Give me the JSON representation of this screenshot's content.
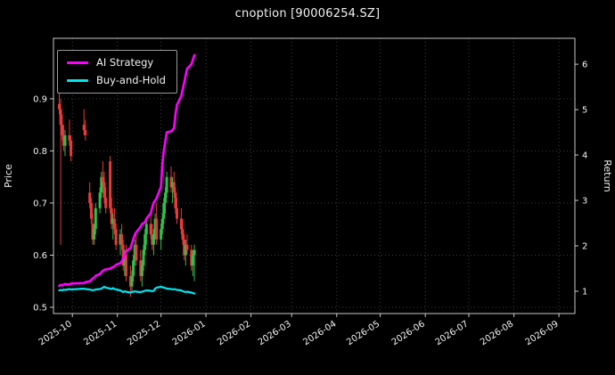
{
  "title": "cnoption [90006254.SZ]",
  "chart_data": {
    "type": "candlestick+line",
    "title": "cnoption [90006254.SZ]",
    "x_domain": [
      "2025-09-18",
      "2026-09-12"
    ],
    "x_ticks": [
      "2025-10",
      "2025-11",
      "2025-12",
      "2026-01",
      "2026-02",
      "2026-03",
      "2026-04",
      "2026-05",
      "2026-06",
      "2026-07",
      "2026-08",
      "2026-09"
    ],
    "left_axis": {
      "label": "Price",
      "ticks": [
        0.5,
        0.6,
        0.7,
        0.8,
        0.9
      ],
      "range": [
        0.488,
        1.016
      ]
    },
    "right_axis": {
      "label": "Return",
      "ticks": [
        1,
        2,
        3,
        4,
        5,
        6
      ],
      "range": [
        0.51,
        6.57
      ]
    },
    "grid": "dotted",
    "legend_position": "upper-left",
    "legend": [
      {
        "label": "AI Strategy",
        "color": "#ff00ff"
      },
      {
        "label": "Buy-and-Hold",
        "color": "#00e5ee"
      }
    ],
    "colors": {
      "background": "#000000",
      "text": "#f2f2f2",
      "grid": "#4d4d4d",
      "frame": "#c8c8c8",
      "up": "#2fbf4a",
      "down": "#e83a3a",
      "ai_strategy": "#ff00ff",
      "buy_and_hold": "#00e5ee"
    },
    "candles": {
      "dates": [
        "2025-09-22",
        "2025-09-23",
        "2025-09-24",
        "2025-09-25",
        "2025-09-26",
        "2025-09-29",
        "2025-09-30",
        "2025-10-09",
        "2025-10-10",
        "2025-10-13",
        "2025-10-14",
        "2025-10-15",
        "2025-10-16",
        "2025-10-17",
        "2025-10-20",
        "2025-10-21",
        "2025-10-22",
        "2025-10-23",
        "2025-10-24",
        "2025-10-27",
        "2025-10-28",
        "2025-10-29",
        "2025-10-30",
        "2025-10-31",
        "2025-11-03",
        "2025-11-04",
        "2025-11-05",
        "2025-11-06",
        "2025-11-07",
        "2025-11-10",
        "2025-11-11",
        "2025-11-12",
        "2025-11-13",
        "2025-11-14",
        "2025-11-17",
        "2025-11-18",
        "2025-11-19",
        "2025-11-20",
        "2025-11-21",
        "2025-11-24",
        "2025-11-25",
        "2025-11-26",
        "2025-11-27",
        "2025-11-28",
        "2025-12-01",
        "2025-12-02",
        "2025-12-03",
        "2025-12-04",
        "2025-12-05",
        "2025-12-08",
        "2025-12-09",
        "2025-12-10",
        "2025-12-11",
        "2025-12-12",
        "2025-12-15",
        "2025-12-16",
        "2025-12-17",
        "2025-12-18",
        "2025-12-19",
        "2025-12-22",
        "2025-12-23",
        "2025-12-24"
      ],
      "open": [
        0.89,
        0.88,
        0.85,
        0.83,
        0.81,
        0.83,
        0.82,
        0.85,
        0.84,
        0.72,
        0.7,
        0.66,
        0.63,
        0.65,
        0.69,
        0.72,
        0.75,
        0.74,
        0.71,
        0.78,
        0.69,
        0.66,
        0.67,
        0.65,
        0.62,
        0.64,
        0.62,
        0.58,
        0.6,
        0.56,
        0.54,
        0.56,
        0.59,
        0.62,
        0.59,
        0.56,
        0.58,
        0.61,
        0.64,
        0.66,
        0.64,
        0.62,
        0.64,
        0.67,
        0.63,
        0.65,
        0.67,
        0.7,
        0.72,
        0.75,
        0.73,
        0.74,
        0.72,
        0.69,
        0.67,
        0.65,
        0.63,
        0.6,
        0.62,
        0.61,
        0.58,
        0.6
      ],
      "high": [
        0.93,
        0.9,
        0.87,
        0.85,
        0.84,
        0.86,
        0.83,
        0.88,
        0.86,
        0.74,
        0.71,
        0.68,
        0.66,
        0.7,
        0.73,
        0.76,
        0.78,
        0.76,
        0.73,
        0.79,
        0.71,
        0.68,
        0.69,
        0.66,
        0.65,
        0.66,
        0.63,
        0.61,
        0.62,
        0.58,
        0.57,
        0.6,
        0.63,
        0.64,
        0.61,
        0.59,
        0.62,
        0.65,
        0.67,
        0.68,
        0.66,
        0.65,
        0.68,
        0.7,
        0.66,
        0.68,
        0.71,
        0.73,
        0.76,
        0.77,
        0.75,
        0.76,
        0.73,
        0.71,
        0.69,
        0.67,
        0.64,
        0.63,
        0.64,
        0.62,
        0.61,
        0.62
      ],
      "low": [
        0.87,
        0.62,
        0.82,
        0.8,
        0.79,
        0.81,
        0.78,
        0.83,
        0.82,
        0.69,
        0.66,
        0.62,
        0.62,
        0.64,
        0.68,
        0.71,
        0.73,
        0.7,
        0.68,
        0.68,
        0.65,
        0.63,
        0.64,
        0.61,
        0.6,
        0.61,
        0.57,
        0.56,
        0.55,
        0.52,
        0.53,
        0.55,
        0.58,
        0.58,
        0.55,
        0.54,
        0.57,
        0.6,
        0.62,
        0.63,
        0.61,
        0.6,
        0.63,
        0.62,
        0.61,
        0.64,
        0.66,
        0.68,
        0.71,
        0.72,
        0.7,
        0.71,
        0.68,
        0.66,
        0.64,
        0.62,
        0.59,
        0.58,
        0.6,
        0.57,
        0.56,
        0.55
      ],
      "close": [
        0.88,
        0.85,
        0.83,
        0.81,
        0.83,
        0.82,
        0.79,
        0.84,
        0.83,
        0.7,
        0.67,
        0.63,
        0.65,
        0.69,
        0.72,
        0.75,
        0.74,
        0.71,
        0.69,
        0.69,
        0.66,
        0.67,
        0.65,
        0.62,
        0.64,
        0.62,
        0.58,
        0.6,
        0.56,
        0.54,
        0.56,
        0.59,
        0.62,
        0.59,
        0.56,
        0.58,
        0.61,
        0.64,
        0.66,
        0.64,
        0.62,
        0.64,
        0.67,
        0.63,
        0.65,
        0.67,
        0.7,
        0.72,
        0.75,
        0.73,
        0.74,
        0.72,
        0.69,
        0.67,
        0.65,
        0.63,
        0.6,
        0.62,
        0.61,
        0.58,
        0.6,
        0.61
      ]
    },
    "series": [
      {
        "id": "buy-and-hold-line",
        "name": "Buy-and-Hold",
        "axis": "right",
        "color": "#00e5ee",
        "width": 2.2,
        "values": [
          1.02,
          1.03,
          1.02,
          1.04,
          1.03,
          1.05,
          1.04,
          1.06,
          1.05,
          1.04,
          1.03,
          1.02,
          1.03,
          1.04,
          1.05,
          1.06,
          1.08,
          1.1,
          1.08,
          1.06,
          1.05,
          1.07,
          1.05,
          1.04,
          1.02,
          1.0,
          0.98,
          1.0,
          0.99,
          0.97,
          0.98,
          0.99,
          1.0,
          0.99,
          0.98,
          0.99,
          1.0,
          1.01,
          1.02,
          1.01,
          1.0,
          1.01,
          1.06,
          1.08,
          1.1,
          1.09,
          1.08,
          1.07,
          1.06,
          1.05,
          1.04,
          1.05,
          1.04,
          1.03,
          1.02,
          1.0,
          0.99,
          0.98,
          0.99,
          0.97,
          0.96,
          0.95
        ]
      },
      {
        "id": "ai-strategy-line",
        "name": "AI Strategy",
        "axis": "right",
        "color": "#ff00ff",
        "width": 2.6,
        "values": [
          1.12,
          1.14,
          1.13,
          1.15,
          1.16,
          1.15,
          1.17,
          1.18,
          1.2,
          1.22,
          1.25,
          1.28,
          1.3,
          1.34,
          1.38,
          1.42,
          1.45,
          1.47,
          1.48,
          1.5,
          1.52,
          1.53,
          1.55,
          1.58,
          1.62,
          1.66,
          1.72,
          1.8,
          1.88,
          1.95,
          2.05,
          2.15,
          2.25,
          2.3,
          2.42,
          2.48,
          2.5,
          2.52,
          2.6,
          2.72,
          2.85,
          2.95,
          3.0,
          3.05,
          3.3,
          3.8,
          4.1,
          4.3,
          4.5,
          4.52,
          4.55,
          4.6,
          4.9,
          5.1,
          5.3,
          5.45,
          5.6,
          5.75,
          5.9,
          6.0,
          6.1,
          6.2
        ]
      }
    ]
  }
}
